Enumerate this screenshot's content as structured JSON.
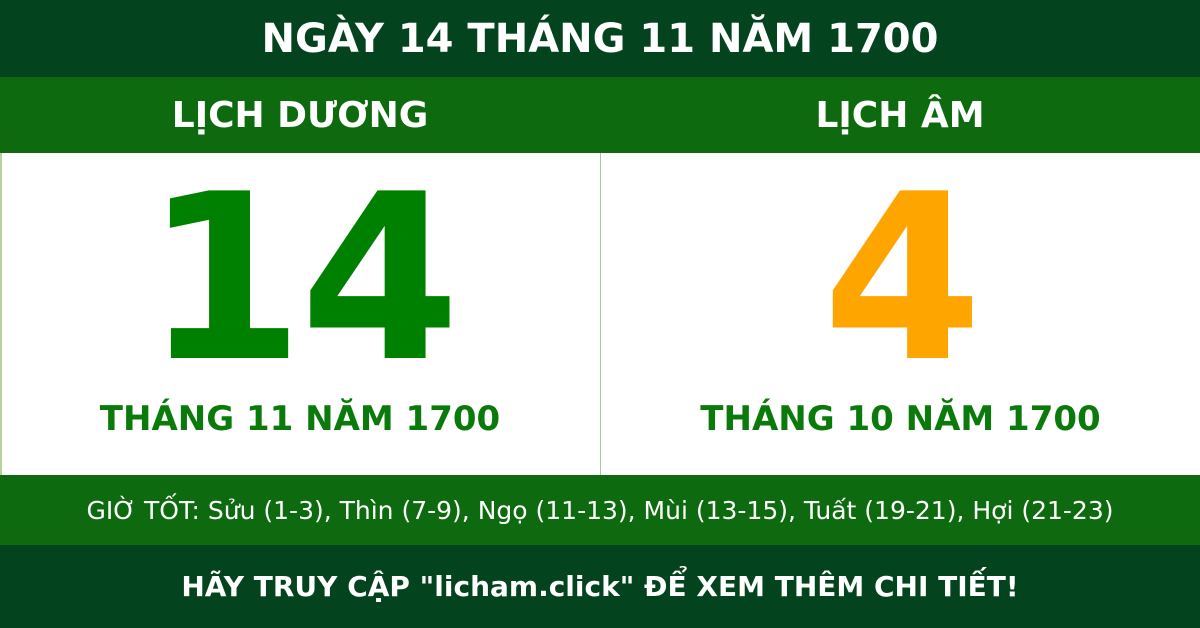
{
  "header": {
    "title": "NGÀY 14 THÁNG 11 NĂM 1700"
  },
  "solar": {
    "label": "LỊCH DƯƠNG",
    "day": "14",
    "month_year": "THÁNG 11 NĂM 1700",
    "color": "#008000"
  },
  "lunar": {
    "label": "LỊCH ÂM",
    "day": "4",
    "month_year": "THÁNG 10 NĂM 1700",
    "color": "#ffa500"
  },
  "good_hours": "GIỜ TỐT: Sửu (1-3), Thìn (7-9), Ngọ (11-13), Mùi (13-15), Tuất (19-21), Hợi (21-23)",
  "footer": {
    "text": "HÃY TRUY CẬP \"licham.click\" ĐỂ XEM THÊM CHI TIẾT!"
  },
  "colors": {
    "dark_green": "#03441f",
    "green": "#0e6a0f"
  }
}
